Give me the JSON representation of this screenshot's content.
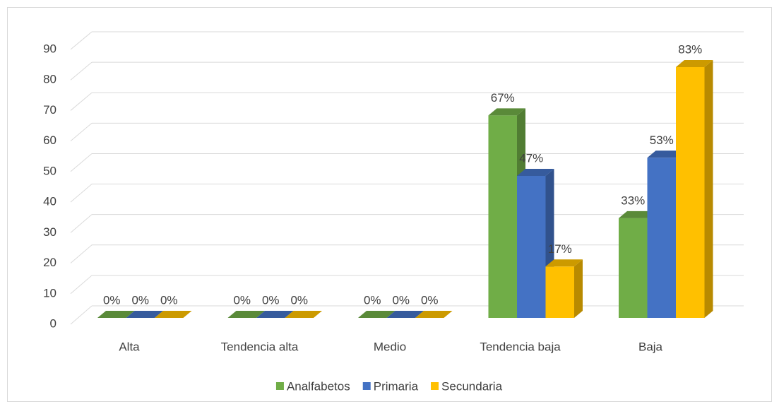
{
  "chart_data": {
    "type": "bar3d",
    "categories": [
      "Alta",
      "Tendencia alta",
      "Medio",
      "Tendencia baja",
      "Baja"
    ],
    "series": [
      {
        "name": "Analfabetos",
        "color": "#70ad47",
        "values": [
          0,
          0,
          0,
          67,
          33
        ],
        "value_labels": [
          "0%",
          "0%",
          "0%",
          "67%",
          "33%"
        ]
      },
      {
        "name": "Primaria",
        "color": "#4472c4",
        "values": [
          0,
          0,
          0,
          47,
          53
        ],
        "value_labels": [
          "0%",
          "0%",
          "0%",
          "47%",
          "53%"
        ]
      },
      {
        "name": "Secundaria",
        "color": "#ffc000",
        "values": [
          0,
          0,
          0,
          17,
          83
        ],
        "value_labels": [
          "0%",
          "0%",
          "0%",
          "17%",
          "83%"
        ]
      }
    ],
    "ylim": [
      0,
      90
    ],
    "yticks": [
      0,
      10,
      20,
      30,
      40,
      50,
      60,
      70,
      80,
      90
    ],
    "grid": true,
    "legend": "bottom"
  }
}
